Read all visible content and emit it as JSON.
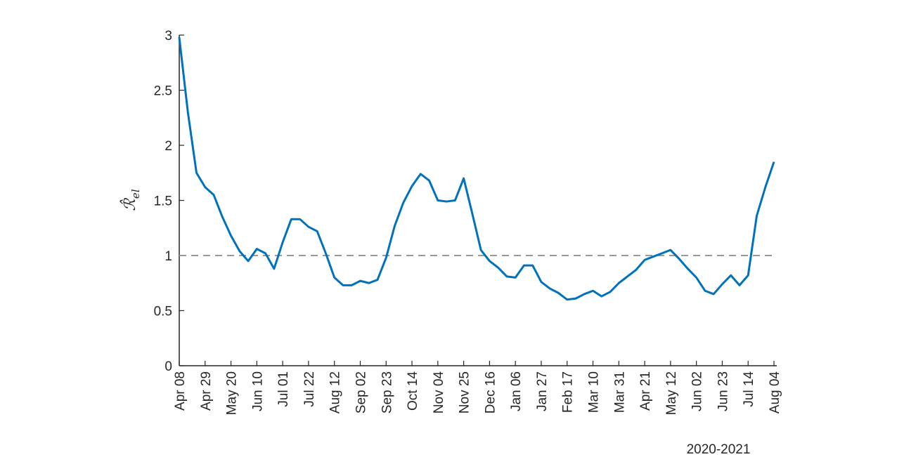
{
  "chart_data": {
    "type": "line",
    "xlabel": "2020-2021",
    "ylabel": {
      "symbol": "ℛ̂",
      "subscript": "el"
    },
    "categories": [
      "Apr 08",
      null,
      null,
      "Apr 29",
      null,
      null,
      "May 20",
      null,
      null,
      "Jun 10",
      null,
      null,
      "Jul 01",
      null,
      null,
      "Jul 22",
      null,
      null,
      "Aug 12",
      null,
      null,
      "Sep 02",
      null,
      null,
      "Sep 23",
      null,
      null,
      "Oct 14",
      null,
      null,
      "Nov 04",
      null,
      null,
      "Nov 25",
      null,
      null,
      "Dec 16",
      null,
      null,
      "Jan 06",
      null,
      null,
      "Jan 27",
      null,
      null,
      "Feb 17",
      null,
      null,
      "Mar 10",
      null,
      null,
      "Mar 31",
      null,
      null,
      "Apr 21",
      null,
      null,
      "May 12",
      null,
      null,
      "Jun 02",
      null,
      null,
      "Jun 23",
      null,
      null,
      "Jul 14",
      null,
      null,
      "Aug 04"
    ],
    "series": [
      {
        "color": "#0072bd",
        "values": [
          2.98,
          2.3,
          1.75,
          1.62,
          1.55,
          1.35,
          1.18,
          1.04,
          0.95,
          1.06,
          1.02,
          0.88,
          1.12,
          1.33,
          1.33,
          1.26,
          1.22,
          1.02,
          0.8,
          0.73,
          0.73,
          0.77,
          0.75,
          0.78,
          0.98,
          1.27,
          1.48,
          1.63,
          1.74,
          1.68,
          1.5,
          1.49,
          1.5,
          1.7,
          1.38,
          1.05,
          0.95,
          0.89,
          0.81,
          0.8,
          0.91,
          0.91,
          0.76,
          0.7,
          0.66,
          0.6,
          0.61,
          0.65,
          0.68,
          0.63,
          0.67,
          0.75,
          0.81,
          0.87,
          0.96,
          0.99,
          1.02,
          1.05,
          0.97,
          0.88,
          0.8,
          0.68,
          0.65,
          0.74,
          0.82,
          0.73,
          0.82,
          1.36,
          1.62,
          1.85
        ]
      }
    ],
    "reference_line": {
      "value": 1,
      "color": "#999999"
    },
    "ylim": [
      0,
      3
    ],
    "yticks": [
      0,
      0.5,
      1,
      1.5,
      2,
      2.5,
      3
    ]
  }
}
